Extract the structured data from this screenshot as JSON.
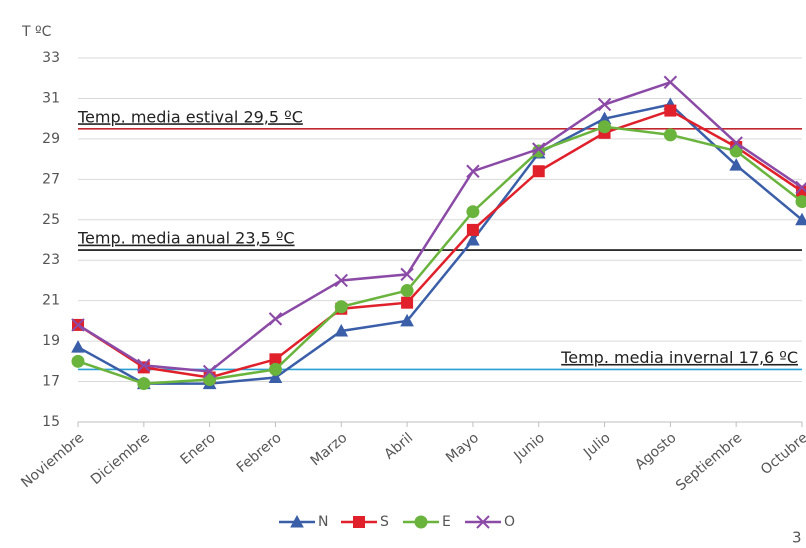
{
  "chart_data": {
    "type": "line",
    "y_label": "T ºC",
    "categories": [
      "Noviembre",
      "Diciembre",
      "Enero",
      "Febrero",
      "Marzo",
      "Abril",
      "Mayo",
      "Junio",
      "Julio",
      "Agosto",
      "Septiembre",
      "Octubre"
    ],
    "ylim": [
      15,
      33
    ],
    "yticks": [
      15,
      17,
      19,
      21,
      23,
      25,
      27,
      29,
      31,
      33
    ],
    "grid": true,
    "series": [
      {
        "name": "N",
        "color": "#3a5ea8",
        "marker": "triangle",
        "values": [
          18.7,
          16.9,
          16.9,
          17.2,
          19.5,
          20.0,
          24.0,
          28.3,
          30.0,
          30.7,
          27.7,
          25.0
        ]
      },
      {
        "name": "S",
        "color": "#e0202a",
        "marker": "square",
        "values": [
          19.8,
          17.7,
          17.2,
          18.1,
          20.6,
          20.9,
          24.5,
          27.4,
          29.3,
          30.4,
          28.6,
          26.4
        ]
      },
      {
        "name": "E",
        "color": "#6ab43e",
        "marker": "circle",
        "values": [
          18.0,
          16.9,
          17.1,
          17.6,
          20.7,
          21.5,
          25.4,
          28.4,
          29.6,
          29.2,
          28.4,
          25.9
        ]
      },
      {
        "name": "O",
        "color": "#8b4aa6",
        "marker": "x",
        "values": [
          19.8,
          17.8,
          17.5,
          20.1,
          22.0,
          22.3,
          27.4,
          28.5,
          30.7,
          31.8,
          28.8,
          26.6
        ]
      }
    ],
    "reference_lines": [
      {
        "value": 29.5,
        "label": "Temp. media estival 29,5 ºC",
        "color": "#c0282d",
        "label_side": "left"
      },
      {
        "value": 23.5,
        "label": "Temp. media anual 23,5 ºC",
        "color": "#111111",
        "label_side": "left"
      },
      {
        "value": 17.6,
        "label": "Temp. media invernal 17,6 ºC",
        "color": "#2a9fd6",
        "label_side": "right"
      }
    ],
    "legend": "bottom"
  },
  "page_number": "3"
}
